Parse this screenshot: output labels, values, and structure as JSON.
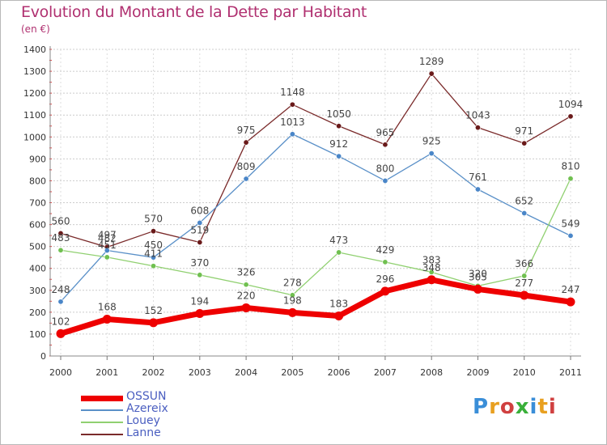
{
  "header": {
    "title": "Evolution du Montant de la Dette par Habitant",
    "subtitle": "(en €)"
  },
  "logo": {
    "text": "Proxiti",
    "colors": [
      "#3a8ed8",
      "#e8a020",
      "#d04040",
      "#3ab03a",
      "#3a8ed8",
      "#e8a020",
      "#d04040"
    ]
  },
  "chart_data": {
    "type": "line",
    "title": "Evolution du Montant de la Dette par Habitant",
    "subtitle": "(en €)",
    "xlabel": "",
    "ylabel": "",
    "x": [
      "2000",
      "2001",
      "2002",
      "2003",
      "2004",
      "2005",
      "2006",
      "2007",
      "2008",
      "2009",
      "2010",
      "2011"
    ],
    "ylim": [
      0,
      1400
    ],
    "yticks": [
      0,
      100,
      200,
      300,
      400,
      500,
      600,
      700,
      800,
      900,
      1000,
      1100,
      1200,
      1300,
      1400
    ],
    "grid": "horizontal dotted",
    "legend_position": "bottom-left",
    "series": [
      {
        "name": "Lanne",
        "color": "#7a2a2a",
        "marker": "#6a1a1a",
        "width": 1.3,
        "values": [
          560,
          497,
          570,
          519,
          975,
          1148,
          1050,
          965,
          1289,
          1043,
          971,
          1094
        ]
      },
      {
        "name": "Azereix",
        "color": "#5a90c8",
        "marker": "#4a86c8",
        "width": 1.3,
        "values": [
          248,
          482,
          450,
          608,
          809,
          1013,
          912,
          800,
          925,
          761,
          652,
          549
        ]
      },
      {
        "name": "Louey",
        "color": "#90d070",
        "marker": "#70c050",
        "width": 1.3,
        "values": [
          483,
          451,
          411,
          370,
          326,
          278,
          473,
          429,
          383,
          320,
          366,
          810
        ]
      },
      {
        "name": "OSSUN",
        "color": "#ee0000",
        "marker": "#ee0000",
        "width": 7,
        "values": [
          102,
          168,
          152,
          194,
          220,
          198,
          183,
          296,
          348,
          305,
          277,
          247
        ]
      }
    ]
  },
  "legend": [
    {
      "name": "OSSUN",
      "color": "#ee0000",
      "width": 7
    },
    {
      "name": "Azereix",
      "color": "#5a90c8",
      "width": 2
    },
    {
      "name": "Louey",
      "color": "#90d070",
      "width": 2
    },
    {
      "name": "Lanne",
      "color": "#7a2a2a",
      "width": 2
    }
  ]
}
